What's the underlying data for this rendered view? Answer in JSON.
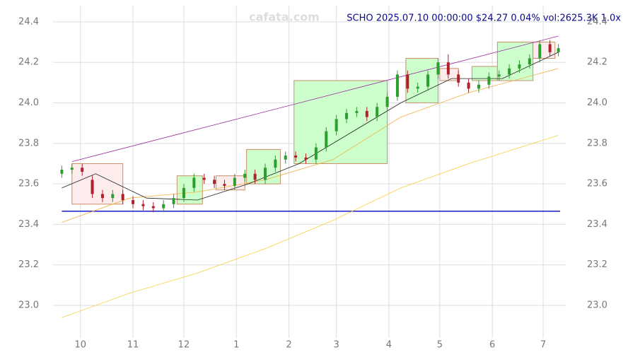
{
  "chart_data": {
    "type": "candlestick",
    "title": "SCHO 2025.07.10 00:00:00 $24.27 0.04% vol:2625.3K 1.0x",
    "watermark": "cafata.com",
    "xlim": [
      -1,
      294
    ],
    "xticks": [
      {
        "value": 11,
        "label": "10"
      },
      {
        "value": 42,
        "label": "11"
      },
      {
        "value": 72,
        "label": "12"
      },
      {
        "value": 103,
        "label": "1"
      },
      {
        "value": 134,
        "label": "2"
      },
      {
        "value": 162,
        "label": "3"
      },
      {
        "value": 193,
        "label": "4"
      },
      {
        "value": 223,
        "label": "5"
      },
      {
        "value": 254,
        "label": "6"
      },
      {
        "value": 284,
        "label": "7"
      }
    ],
    "ylim": [
      22.85,
      24.48
    ],
    "yticks": [
      {
        "value": 23.0,
        "label": "23.0"
      },
      23.2,
      23.4,
      23.6,
      23.8,
      {
        "value": 24.0,
        "label": "24.0"
      },
      24.2,
      24.4
    ],
    "grid": true,
    "up_color": "#2e9e2e",
    "down_color": "#b0202a",
    "candles": {
      "x": [
        0,
        6,
        12,
        18,
        24,
        30,
        36,
        42,
        48,
        54,
        60,
        66,
        72,
        78,
        84,
        90,
        96,
        102,
        108,
        114,
        120,
        126,
        132,
        138,
        144,
        150,
        156,
        162,
        168,
        174,
        180,
        186,
        192,
        198,
        204,
        210,
        216,
        222,
        228,
        234,
        240,
        246,
        252,
        258,
        264,
        270,
        276,
        282,
        288,
        293
      ],
      "open": [
        23.65,
        23.67,
        23.68,
        23.62,
        23.55,
        23.53,
        23.55,
        23.52,
        23.5,
        23.49,
        23.48,
        23.5,
        23.53,
        23.58,
        23.63,
        23.62,
        23.6,
        23.59,
        23.63,
        23.65,
        23.62,
        23.68,
        23.72,
        23.74,
        23.73,
        23.72,
        23.78,
        23.86,
        23.92,
        23.95,
        23.96,
        23.93,
        23.98,
        24.03,
        24.14,
        24.07,
        24.08,
        24.14,
        24.2,
        24.14,
        24.1,
        24.07,
        24.09,
        24.13,
        24.14,
        24.17,
        24.19,
        24.22,
        24.29,
        24.25
      ],
      "high": [
        23.69,
        23.7,
        23.7,
        23.64,
        23.57,
        23.57,
        23.57,
        23.54,
        23.52,
        23.51,
        23.52,
        23.55,
        23.6,
        23.65,
        23.65,
        23.64,
        23.62,
        23.65,
        23.67,
        23.67,
        23.7,
        23.74,
        23.76,
        23.76,
        23.75,
        23.8,
        23.88,
        23.94,
        23.97,
        23.98,
        23.98,
        24.0,
        24.05,
        24.16,
        24.16,
        24.1,
        24.16,
        24.22,
        24.24,
        24.16,
        24.12,
        24.11,
        24.15,
        24.16,
        24.19,
        24.21,
        24.24,
        24.31,
        24.31,
        24.29
      ],
      "low": [
        23.63,
        23.65,
        23.64,
        23.53,
        23.51,
        23.51,
        23.5,
        23.48,
        23.47,
        23.46,
        23.46,
        23.48,
        23.51,
        23.56,
        23.6,
        23.58,
        23.57,
        23.57,
        23.61,
        23.6,
        23.6,
        23.66,
        23.7,
        23.71,
        23.7,
        23.7,
        23.76,
        23.84,
        23.9,
        23.93,
        23.91,
        23.91,
        23.96,
        24.01,
        24.05,
        24.05,
        24.06,
        24.12,
        24.12,
        24.08,
        24.05,
        24.05,
        24.07,
        24.11,
        24.12,
        24.15,
        24.17,
        24.2,
        24.23,
        24.23
      ],
      "close": [
        23.67,
        23.68,
        23.66,
        23.55,
        23.53,
        23.55,
        23.52,
        23.5,
        23.49,
        23.48,
        23.5,
        23.53,
        23.58,
        23.63,
        23.62,
        23.6,
        23.59,
        23.63,
        23.65,
        23.62,
        23.68,
        23.72,
        23.74,
        23.73,
        23.72,
        23.78,
        23.86,
        23.92,
        23.95,
        23.96,
        23.93,
        23.98,
        24.03,
        24.14,
        24.07,
        24.08,
        24.14,
        24.2,
        24.14,
        24.1,
        24.07,
        24.09,
        24.13,
        24.14,
        24.17,
        24.19,
        24.22,
        24.29,
        24.25,
        24.27
      ]
    },
    "overlays": [
      {
        "color": "#f5d040",
        "x": [
          0,
          40,
          80,
          120,
          160,
          200,
          240,
          293
        ],
        "y": [
          22.94,
          23.06,
          23.16,
          23.28,
          23.42,
          23.58,
          23.7,
          23.84
        ]
      },
      {
        "color": "#f0b040",
        "x": [
          0,
          40,
          80,
          120,
          160,
          200,
          240,
          293
        ],
        "y": [
          23.41,
          23.53,
          23.56,
          23.62,
          23.72,
          23.93,
          24.05,
          24.17
        ]
      },
      {
        "color": "#222222",
        "x": [
          0,
          20,
          50,
          80,
          110,
          140,
          170,
          200,
          230,
          260,
          293
        ],
        "y": [
          23.58,
          23.65,
          23.53,
          23.52,
          23.6,
          23.7,
          23.85,
          24.0,
          24.12,
          24.12,
          24.25
        ]
      },
      {
        "color": "#9a2a9a",
        "x": [
          6,
          293
        ],
        "y": [
          23.71,
          24.33
        ]
      }
    ],
    "support": 23.465,
    "support_color": "#1a1acc",
    "boxes": [
      {
        "x0": 6,
        "x1": 36,
        "y0": 23.5,
        "y1": 23.7,
        "color": "#fdecec"
      },
      {
        "x0": 68,
        "x1": 83,
        "y0": 23.5,
        "y1": 23.64,
        "color": "#ccffcc"
      },
      {
        "x0": 91,
        "x1": 108,
        "y0": 23.57,
        "y1": 23.64,
        "color": "#fdecec"
      },
      {
        "x0": 109,
        "x1": 129,
        "y0": 23.6,
        "y1": 23.77,
        "color": "#ccffcc"
      },
      {
        "x0": 137,
        "x1": 192,
        "y0": 23.7,
        "y1": 24.11,
        "color": "#ccffcc"
      },
      {
        "x0": 203,
        "x1": 222,
        "y0": 24.0,
        "y1": 24.22,
        "color": "#ccffcc"
      },
      {
        "x0": 223,
        "x1": 234,
        "y0": 24.11,
        "y1": 24.17,
        "color": "#fdecec"
      },
      {
        "x0": 242,
        "x1": 257,
        "y0": 24.11,
        "y1": 24.18,
        "color": "#ccffcc"
      },
      {
        "x0": 257,
        "x1": 278,
        "y0": 24.11,
        "y1": 24.3,
        "color": "#ccffcc"
      },
      {
        "x0": 278,
        "x1": 291,
        "y0": 24.22,
        "y1": 24.3,
        "color": "#fdecec"
      }
    ]
  }
}
